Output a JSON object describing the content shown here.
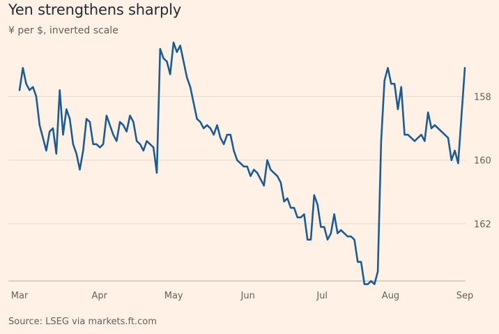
{
  "chart_data": {
    "type": "line",
    "title": "Yen strengthens sharply",
    "subtitle": "¥ per $, inverted scale",
    "source": "Source: LSEG via markets.ft.com",
    "y_inverted": true,
    "ylim": [
      156.5,
      163.8
    ],
    "y_ticks": [
      158,
      160,
      162
    ],
    "x_ticks": [
      "Mar",
      "Apr",
      "May",
      "Jun",
      "Jul",
      "Aug",
      "Sep"
    ],
    "xlim": [
      0,
      156
    ],
    "x_tick_positions": [
      0,
      28,
      54,
      80,
      106,
      130,
      156
    ],
    "line_color": "#1b5a94",
    "grid": true,
    "series": [
      {
        "name": "",
        "values": [
          157.8,
          157.1,
          157.6,
          157.8,
          157.7,
          158.0,
          158.9,
          159.3,
          159.7,
          159.1,
          159.0,
          159.8,
          157.8,
          159.2,
          158.4,
          158.7,
          159.5,
          159.8,
          160.3,
          159.7,
          158.7,
          158.8,
          159.5,
          159.5,
          159.6,
          159.5,
          158.6,
          158.9,
          159.2,
          159.4,
          158.8,
          158.9,
          159.1,
          158.6,
          158.8,
          159.4,
          159.5,
          159.7,
          159.4,
          159.5,
          159.6,
          160.4,
          156.5,
          156.8,
          156.9,
          157.3,
          156.3,
          156.6,
          156.4,
          156.9,
          157.4,
          157.7,
          158.2,
          158.7,
          158.8,
          159.0,
          158.9,
          159.0,
          159.2,
          158.9,
          159.3,
          159.5,
          159.2,
          159.2,
          159.7,
          160.0,
          160.1,
          160.2,
          160.2,
          160.5,
          160.3,
          160.4,
          160.6,
          160.8,
          160.0,
          160.3,
          160.4,
          160.5,
          160.7,
          161.3,
          161.2,
          161.5,
          161.5,
          161.8,
          161.8,
          161.7,
          162.5,
          162.5,
          161.1,
          161.4,
          162.1,
          162.1,
          162.5,
          162.3,
          161.7,
          162.3,
          162.2,
          162.3,
          162.4,
          162.4,
          162.5,
          163.2,
          163.2,
          163.9,
          163.9,
          163.8,
          163.9,
          163.5,
          159.4,
          157.5,
          157.1,
          157.6,
          157.6,
          158.4,
          157.7,
          159.2,
          159.2,
          159.3,
          159.4,
          159.3,
          159.2,
          159.4,
          158.5,
          159.0,
          158.9,
          159.0,
          159.1,
          159.2,
          159.3,
          160.0,
          159.7,
          160.1,
          158.6,
          157.1
        ]
      }
    ]
  }
}
